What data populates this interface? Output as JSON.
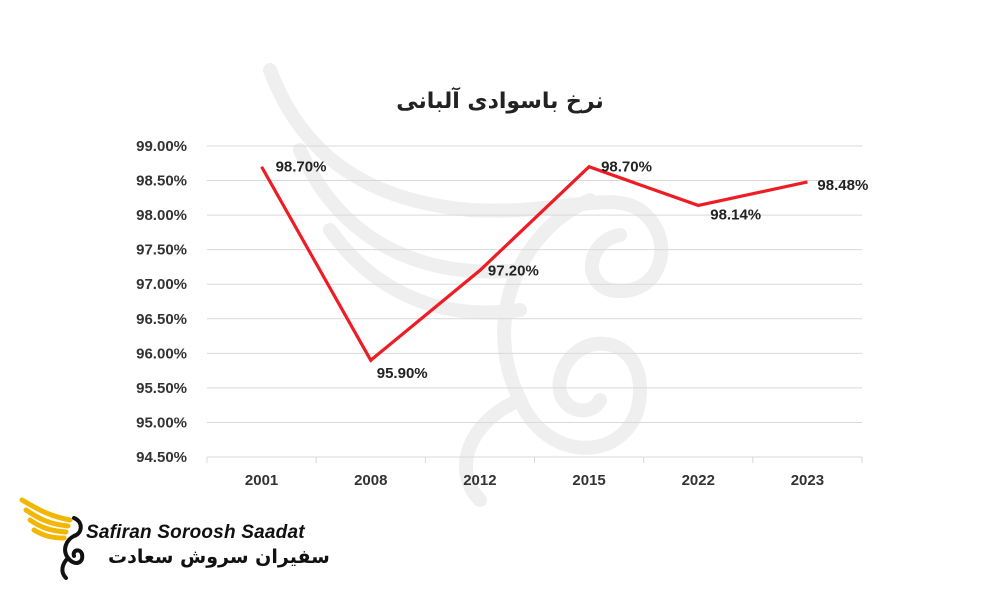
{
  "chart_data": {
    "type": "line",
    "title": "نرخ باسوادی آلبانی",
    "categories": [
      "2001",
      "2008",
      "2012",
      "2015",
      "2022",
      "2023"
    ],
    "series": [
      {
        "values": [
          98.7,
          95.9,
          97.2,
          98.7,
          98.14,
          98.48
        ],
        "data_labels": [
          "98.70%",
          "95.90%",
          "97.20%",
          "98.70%",
          "98.14%",
          "98.48%"
        ],
        "color": "#ee1c25"
      }
    ],
    "y_ticks": [
      "99.00%",
      "98.50%",
      "98.00%",
      "97.50%",
      "97.00%",
      "96.50%",
      "96.00%",
      "95.50%",
      "95.00%",
      "94.50%"
    ],
    "ylim": [
      94.5,
      99.0
    ],
    "grid": true,
    "legend": "none"
  },
  "logo": {
    "name_en": "Safiran Soroosh Saadat",
    "name_fa": "سفیران سروش سعادت",
    "accent_color": "#f2b705"
  },
  "watermark": {
    "icon": "swan-watermark-icon"
  }
}
